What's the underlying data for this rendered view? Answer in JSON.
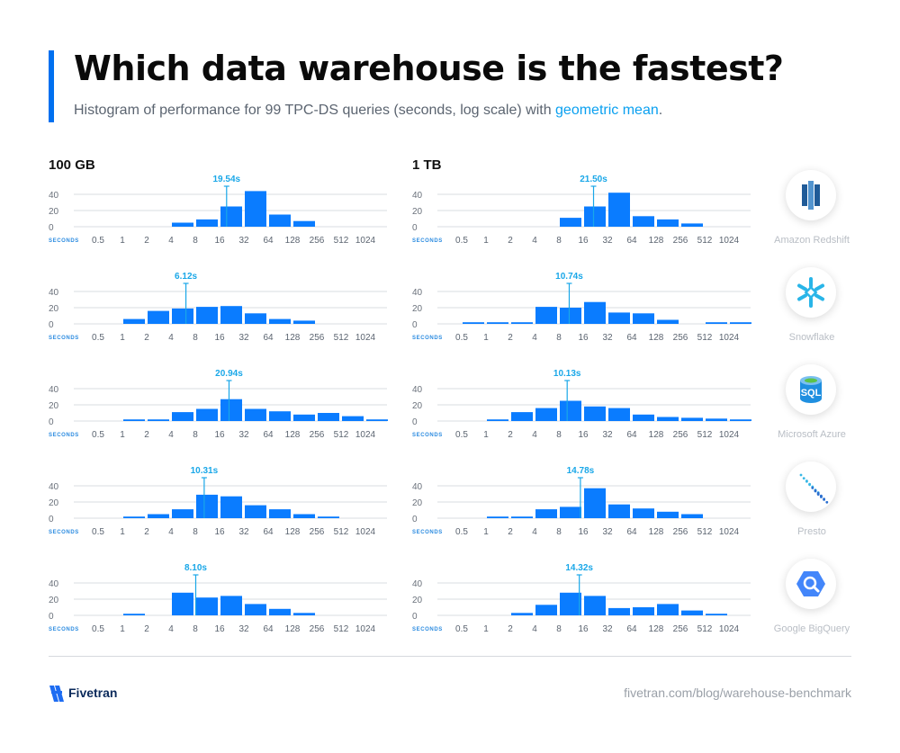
{
  "header": {
    "title": "Which data warehouse is the fastest?",
    "subtitle_text": "Histogram of performance for 99 TPC-DS queries (seconds, log scale) with ",
    "subtitle_highlight": "geometric mean",
    "subtitle_end": "."
  },
  "columns": [
    "100 GB",
    "1 TB"
  ],
  "colors": {
    "accent": "#0070f0",
    "bar": "#0a7cff",
    "mean": "#19a7e8",
    "grid": "#d9dce1"
  },
  "footer": {
    "brand": "Fivetran",
    "url": "fivetran.com/blog/warehouse-benchmark"
  },
  "vendors": [
    {
      "name": "Amazon Redshift",
      "icon": "redshift-icon"
    },
    {
      "name": "Snowflake",
      "icon": "snowflake-icon"
    },
    {
      "name": "Microsoft Azure",
      "icon": "azure-sql-icon"
    },
    {
      "name": "Presto",
      "icon": "presto-icon"
    },
    {
      "name": "Google BigQuery",
      "icon": "bigquery-icon"
    }
  ],
  "chart_data": {
    "type": "bar",
    "x_axis_label": "SECONDS",
    "x_ticks": [
      "0.5",
      "1",
      "2",
      "4",
      "8",
      "16",
      "32",
      "64",
      "128",
      "256",
      "512",
      "1024"
    ],
    "y_ticks": [
      0,
      20,
      40
    ],
    "ylim": [
      0,
      50
    ],
    "x_scale": "log2",
    "grid": true,
    "charts": [
      {
        "warehouse": "Amazon Redshift",
        "size": "100 GB",
        "mean_label": "19.54s",
        "mean": 19.54,
        "values": [
          0,
          0,
          0,
          5,
          9,
          25,
          44,
          15,
          7,
          0,
          0,
          0
        ]
      },
      {
        "warehouse": "Amazon Redshift",
        "size": "1 TB",
        "mean_label": "21.50s",
        "mean": 21.5,
        "values": [
          0,
          0,
          0,
          0,
          11,
          25,
          42,
          13,
          9,
          4,
          0,
          0
        ]
      },
      {
        "warehouse": "Snowflake",
        "size": "100 GB",
        "mean_label": "6.12s",
        "mean": 6.12,
        "values": [
          0,
          6,
          16,
          19,
          21,
          22,
          13,
          6,
          4,
          0,
          0,
          0
        ]
      },
      {
        "warehouse": "Snowflake",
        "size": "1 TB",
        "mean_label": "10.74s",
        "mean": 10.74,
        "values": [
          2,
          2,
          2,
          21,
          20,
          27,
          14,
          13,
          5,
          0,
          2,
          2
        ]
      },
      {
        "warehouse": "Microsoft Azure",
        "size": "100 GB",
        "mean_label": "20.94s",
        "mean": 20.94,
        "values": [
          0,
          2,
          2,
          11,
          15,
          27,
          15,
          12,
          8,
          10,
          6,
          2
        ]
      },
      {
        "warehouse": "Microsoft Azure",
        "size": "1 TB",
        "mean_label": "10.13s",
        "mean": 10.13,
        "values": [
          0,
          2,
          11,
          16,
          25,
          18,
          16,
          8,
          5,
          4,
          3,
          2
        ]
      },
      {
        "warehouse": "Presto",
        "size": "100 GB",
        "mean_label": "10.31s",
        "mean": 10.31,
        "values": [
          0,
          2,
          5,
          11,
          29,
          27,
          16,
          11,
          5,
          2,
          0,
          0
        ]
      },
      {
        "warehouse": "Presto",
        "size": "1 TB",
        "mean_label": "14.78s",
        "mean": 14.78,
        "values": [
          0,
          2,
          2,
          11,
          14,
          37,
          17,
          12,
          8,
          5,
          0,
          0
        ]
      },
      {
        "warehouse": "Google BigQuery",
        "size": "100 GB",
        "mean_label": "8.10s",
        "mean": 8.1,
        "values": [
          0,
          2,
          0,
          28,
          22,
          24,
          14,
          8,
          3,
          0,
          0,
          0
        ]
      },
      {
        "warehouse": "Google BigQuery",
        "size": "1 TB",
        "mean_label": "14.32s",
        "mean": 14.32,
        "values": [
          0,
          0,
          3,
          13,
          28,
          24,
          9,
          10,
          14,
          6,
          2,
          0
        ]
      }
    ]
  }
}
